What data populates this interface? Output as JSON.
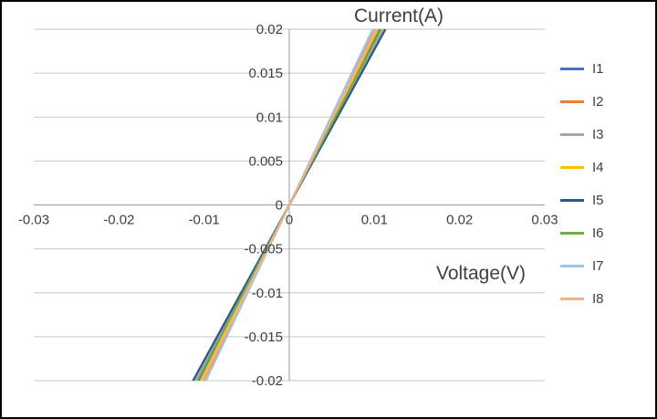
{
  "window": {
    "background": "#ffffff",
    "border_color": "#000000"
  },
  "chart_data": {
    "type": "line",
    "title": "Current(A)",
    "xlabel": "Voltage(V)",
    "ylabel": "Current(A)",
    "xlim": [
      -0.03,
      0.03
    ],
    "ylim": [
      -0.02,
      0.02
    ],
    "x_ticks": [
      -0.03,
      -0.02,
      -0.01,
      0,
      0.01,
      0.02,
      0.03
    ],
    "y_ticks": [
      0.02,
      0.015,
      0.01,
      0.005,
      0,
      -0.005,
      -0.01,
      -0.015,
      -0.02
    ],
    "grid": "horizontal",
    "legend_position": "right",
    "grid_color": "#c6c6c6",
    "axis_color": "#9a9a9a",
    "text_color": "#3f3f3f",
    "series": [
      {
        "name": "I1",
        "color": "#4472c4",
        "points": [
          [
            -0.0106,
            -0.02
          ],
          [
            0.0106,
            0.02
          ]
        ]
      },
      {
        "name": "I2",
        "color": "#ed7d31",
        "points": [
          [
            -0.0101,
            -0.02
          ],
          [
            0.0101,
            0.02
          ]
        ]
      },
      {
        "name": "I3",
        "color": "#a5a5a5",
        "points": [
          [
            -0.0111,
            -0.02
          ],
          [
            0.0111,
            0.02
          ]
        ]
      },
      {
        "name": "I4",
        "color": "#ffc000",
        "points": [
          [
            -0.0104,
            -0.02
          ],
          [
            0.0104,
            0.02
          ]
        ]
      },
      {
        "name": "I5",
        "color": "#2f5597",
        "points": [
          [
            -0.0113,
            -0.02
          ],
          [
            0.0113,
            0.02
          ]
        ]
      },
      {
        "name": "I6",
        "color": "#70ad47",
        "points": [
          [
            -0.0108,
            -0.02
          ],
          [
            0.0108,
            0.02
          ]
        ]
      },
      {
        "name": "I7",
        "color": "#9dc3e6",
        "points": [
          [
            -0.0098,
            -0.02
          ],
          [
            0.0098,
            0.02
          ]
        ]
      },
      {
        "name": "I8",
        "color": "#f4b183",
        "points": [
          [
            -0.0102,
            -0.02
          ],
          [
            0.0102,
            0.02
          ]
        ]
      }
    ]
  }
}
